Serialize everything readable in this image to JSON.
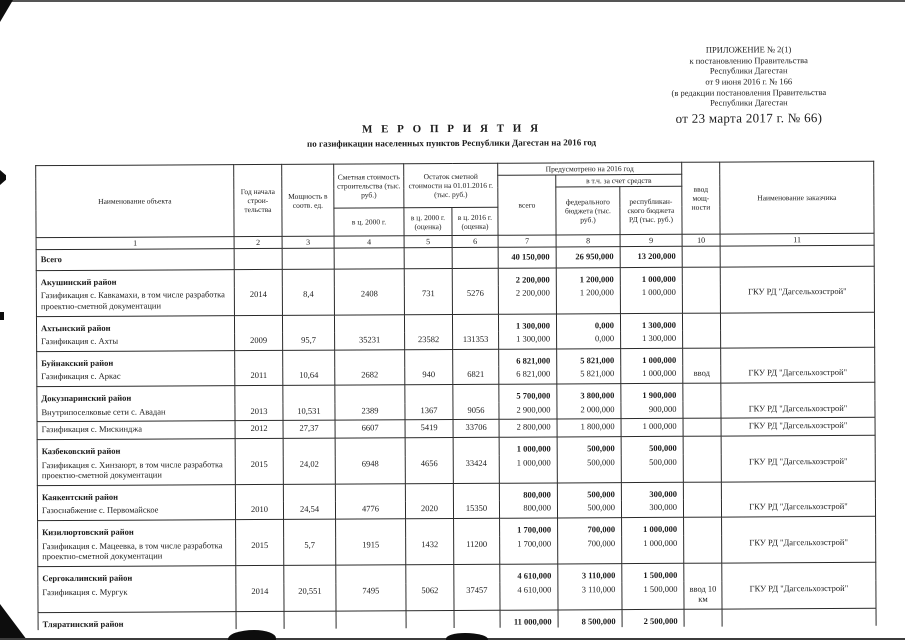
{
  "colors": {
    "paper": "#ffffff",
    "ink": "#1c1c1c"
  },
  "appendix": {
    "lines": [
      "ПРИЛОЖЕНИЕ № 2(1)",
      "к постановлению Правительства",
      "Республики  Дагестан",
      "от 9 июня 2016 г. № 166",
      "(в редакции постановления Правительства",
      "Республики Дагестан"
    ],
    "big_line": "от 23 марта 2017 г. № 66)"
  },
  "title": {
    "main": "М Е Р О П Р И Я Т И Я",
    "sub": "по газификации населенных пунктов Республики Дагестан на 2016 год"
  },
  "table": {
    "headers": {
      "object_name": "Наименование объекта",
      "start_year": "Год начала строи-тельства",
      "capacity": "Мощность в соотв. ед.",
      "est_cost": "Сметная стоимость строительства (тыс. руб.)",
      "est_cost_sub": "в ц. 2000 г.",
      "remaining_cost": "Остаток сметной стоимости на 01.01.2016 г. (тыс. руб.)",
      "rem_sub_2000": "в ц. 2000 г. (оценка)",
      "rem_sub_2016": "в ц. 2016 г. (оценка)",
      "provided_2016": "Предусмотрено на 2016 год",
      "total": "всего",
      "including": "в т.ч. за счет средств",
      "federal": "федерального бюджета (тыс. руб.)",
      "republican": "республикан-ского бюджета РД (тыс. руб.)",
      "commissioning": "ввод мощ-ности",
      "customer": "Наименование заказчика"
    },
    "col_numbers": [
      "1",
      "2",
      "3",
      "4",
      "5",
      "6",
      "7",
      "8",
      "9",
      "10",
      "11"
    ],
    "rows": [
      {
        "type": "total",
        "name": "Всего",
        "total": "40 150,000",
        "federal": "26 950,000",
        "republican": "13 200,000"
      },
      {
        "type": "district",
        "name": "Акушинский район",
        "total": "2 200,000",
        "federal": "1 200,000",
        "republican": "1 000,000"
      },
      {
        "type": "object",
        "name": "Газификация с. Кавкамахи, в том числе разработка проектно-сметной документации",
        "year": "2014",
        "capacity": "8,4",
        "cost": "2408",
        "rem2000": "731",
        "rem2016": "5276",
        "total": "2 200,000",
        "federal": "1 200,000",
        "republican": "1 000,000",
        "customer": "ГКУ РД \"Дагсельхозстрой\""
      },
      {
        "type": "district",
        "name": "Ахтынский район",
        "total": "1 300,000",
        "federal": "0,000",
        "republican": "1 300,000"
      },
      {
        "type": "object",
        "name": "Газификация с. Ахты",
        "year": "2009",
        "capacity": "95,7",
        "cost": "35231",
        "rem2000": "23582",
        "rem2016": "131353",
        "total": "1 300,000",
        "federal": "0,000",
        "republican": "1 300,000"
      },
      {
        "type": "district",
        "name": "Буйнакский район",
        "total": "6 821,000",
        "federal": "5 821,000",
        "republican": "1 000,000"
      },
      {
        "type": "object",
        "name": "Газификация с. Аркас",
        "year": "2011",
        "capacity": "10,64",
        "cost": "2682",
        "rem2000": "940",
        "rem2016": "6821",
        "total": "6 821,000",
        "federal": "5 821,000",
        "republican": "1 000,000",
        "input": "ввод",
        "customer": "ГКУ РД \"Дагсельхозстрой\""
      },
      {
        "type": "district",
        "name": "Докузпаринский район",
        "total": "5 700,000",
        "federal": "3 800,000",
        "republican": "1 900,000"
      },
      {
        "type": "object",
        "name": "Внутрипоселковые сети с. Авадан",
        "year": "2013",
        "capacity": "10,531",
        "cost": "2389",
        "rem2000": "1367",
        "rem2016": "9056",
        "total": "2 900,000",
        "federal": "2 000,000",
        "republican": "900,000",
        "customer": "ГКУ РД \"Дагсельхозстрой\""
      },
      {
        "type": "object",
        "name": "Газификация с. Мискинджа",
        "year": "2012",
        "capacity": "27,37",
        "cost": "6607",
        "rem2000": "5419",
        "rem2016": "33706",
        "total": "2 800,000",
        "federal": "1 800,000",
        "republican": "1 000,000",
        "customer": "ГКУ РД \"Дагсельхозстрой\""
      },
      {
        "type": "district",
        "name": "Казбековский район",
        "total": "1 000,000",
        "federal": "500,000",
        "republican": "500,000"
      },
      {
        "type": "object",
        "name": "Газификация с. Хинзаюрт, в том числе разработка проектно-сметной документации",
        "year": "2015",
        "capacity": "24,02",
        "cost": "6948",
        "rem2000": "4656",
        "rem2016": "33424",
        "total": "1 000,000",
        "federal": "500,000",
        "republican": "500,000",
        "customer": "ГКУ РД \"Дагсельхозстрой\""
      },
      {
        "type": "district",
        "name": "Каякентский район",
        "total": "800,000",
        "federal": "500,000",
        "republican": "300,000"
      },
      {
        "type": "object",
        "name": "Газоснабжение с. Первомайское",
        "year": "2010",
        "capacity": "24,54",
        "cost": "4776",
        "rem2000": "2020",
        "rem2016": "15350",
        "total": "800,000",
        "federal": "500,000",
        "republican": "300,000",
        "customer": "ГКУ РД \"Дагсельхозстрой\""
      },
      {
        "type": "district",
        "name": "Кизилюртовский район",
        "total": "1 700,000",
        "federal": "700,000",
        "republican": "1 000,000"
      },
      {
        "type": "object",
        "name": "Газификация с. Мацеевка, в том числе разработка проектно-сметной документации",
        "year": "2015",
        "capacity": "5,7",
        "cost": "1915",
        "rem2000": "1432",
        "rem2016": "11200",
        "total": "1 700,000",
        "federal": "700,000",
        "republican": "1 000,000",
        "customer": "ГКУ РД \"Дагсельхозстрой\""
      },
      {
        "type": "district",
        "name": "Сергокалинский район",
        "total": "4 610,000",
        "federal": "3 110,000",
        "republican": "1 500,000"
      },
      {
        "type": "object",
        "name": "Газификация с. Мургук",
        "year": "2014",
        "capacity": "20,551",
        "cost": "7495",
        "rem2000": "5062",
        "rem2016": "37457",
        "total": "4 610,000",
        "federal": "3 110,000",
        "republican": "1 500,000",
        "input": "ввод 10 км",
        "customer": "ГКУ РД \"Дагсельхозстрой\""
      },
      {
        "type": "district",
        "name": "Тляратинский район",
        "total": "11 000,000",
        "federal": "8 500,000",
        "republican": "2 500,000"
      }
    ]
  }
}
